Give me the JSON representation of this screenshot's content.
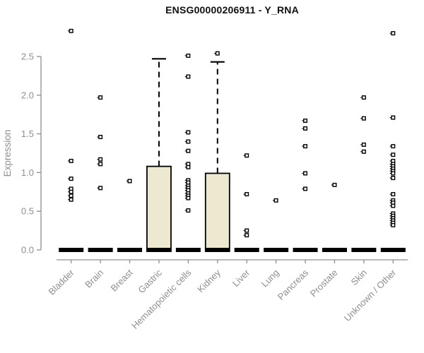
{
  "chart_data": {
    "type": "boxplot",
    "title": "ENSG00000206911 - Y_RNA",
    "ylabel": "Expression",
    "xlabel": "",
    "ylim": [
      0,
      2.5
    ],
    "yticks": [
      0.0,
      0.5,
      1.0,
      1.5,
      2.0,
      2.5
    ],
    "grid": false,
    "legend": "none",
    "colors": {
      "box_fill": "#EDE8D0",
      "box_stroke": "#000000",
      "median_bar": "#000000",
      "outlier": "#000000",
      "axis": "#8C8F92",
      "title": "#111111",
      "background": "#FFFFFF"
    },
    "categories": [
      "Bladder",
      "Brain",
      "Breast",
      "Gastric",
      "Hematopoietic cells",
      "Kidney",
      "Liver",
      "Lung",
      "Pancreas",
      "Prostate",
      "Skin",
      "Unknown / Other"
    ],
    "boxes": [
      {
        "category": "Bladder",
        "q1": 0,
        "median": 0,
        "q3": 0,
        "whisker_low": 0,
        "whisker_high": 0,
        "outliers": [
          2.83,
          1.15,
          0.92,
          0.79,
          0.75,
          0.7,
          0.65
        ]
      },
      {
        "category": "Brain",
        "q1": 0,
        "median": 0,
        "q3": 0,
        "whisker_low": 0,
        "whisker_high": 0,
        "outliers": [
          1.97,
          1.46,
          1.17,
          1.11,
          0.8
        ]
      },
      {
        "category": "Breast",
        "q1": 0,
        "median": 0,
        "q3": 0,
        "whisker_low": 0,
        "whisker_high": 0,
        "outliers": [
          0.89
        ]
      },
      {
        "category": "Gastric",
        "q1": 0,
        "median": 0,
        "q3": 1.08,
        "whisker_low": 0,
        "whisker_high": 2.47,
        "outliers": []
      },
      {
        "category": "Hematopoietic cells",
        "q1": 0,
        "median": 0,
        "q3": 0,
        "whisker_low": 0,
        "whisker_high": 0,
        "outliers": [
          2.51,
          2.24,
          1.52,
          1.4,
          1.28,
          1.11,
          1.07,
          0.9,
          0.87,
          0.83,
          0.8,
          0.77,
          0.73,
          0.7,
          0.67,
          0.51
        ]
      },
      {
        "category": "Kidney",
        "q1": 0,
        "median": 0,
        "q3": 0.99,
        "whisker_low": 0,
        "whisker_high": 2.43,
        "outliers": [
          2.54
        ]
      },
      {
        "category": "Liver",
        "q1": 0,
        "median": 0,
        "q3": 0,
        "whisker_low": 0,
        "whisker_high": 0,
        "outliers": [
          1.22,
          0.72,
          0.25,
          0.19
        ]
      },
      {
        "category": "Lung",
        "q1": 0,
        "median": 0,
        "q3": 0,
        "whisker_low": 0,
        "whisker_high": 0,
        "outliers": [
          0.64
        ]
      },
      {
        "category": "Pancreas",
        "q1": 0,
        "median": 0,
        "q3": 0,
        "whisker_low": 0,
        "whisker_high": 0,
        "outliers": [
          1.67,
          1.57,
          1.34,
          0.99,
          0.79
        ]
      },
      {
        "category": "Prostate",
        "q1": 0,
        "median": 0,
        "q3": 0,
        "whisker_low": 0,
        "whisker_high": 0,
        "outliers": [
          0.84
        ]
      },
      {
        "category": "Skin",
        "q1": 0,
        "median": 0,
        "q3": 0,
        "whisker_low": 0,
        "whisker_high": 0,
        "outliers": [
          1.97,
          1.7,
          1.36,
          1.27
        ]
      },
      {
        "category": "Unknown / Other",
        "q1": 0,
        "median": 0,
        "q3": 0,
        "whisker_low": 0,
        "whisker_high": 0,
        "outliers": [
          2.8,
          1.71,
          1.34,
          1.23,
          1.15,
          1.11,
          1.08,
          1.05,
          1.02,
          0.99,
          0.93,
          0.72,
          0.64,
          0.61,
          0.57,
          0.47,
          0.44,
          0.41,
          0.38,
          0.35,
          0.32
        ]
      }
    ]
  }
}
